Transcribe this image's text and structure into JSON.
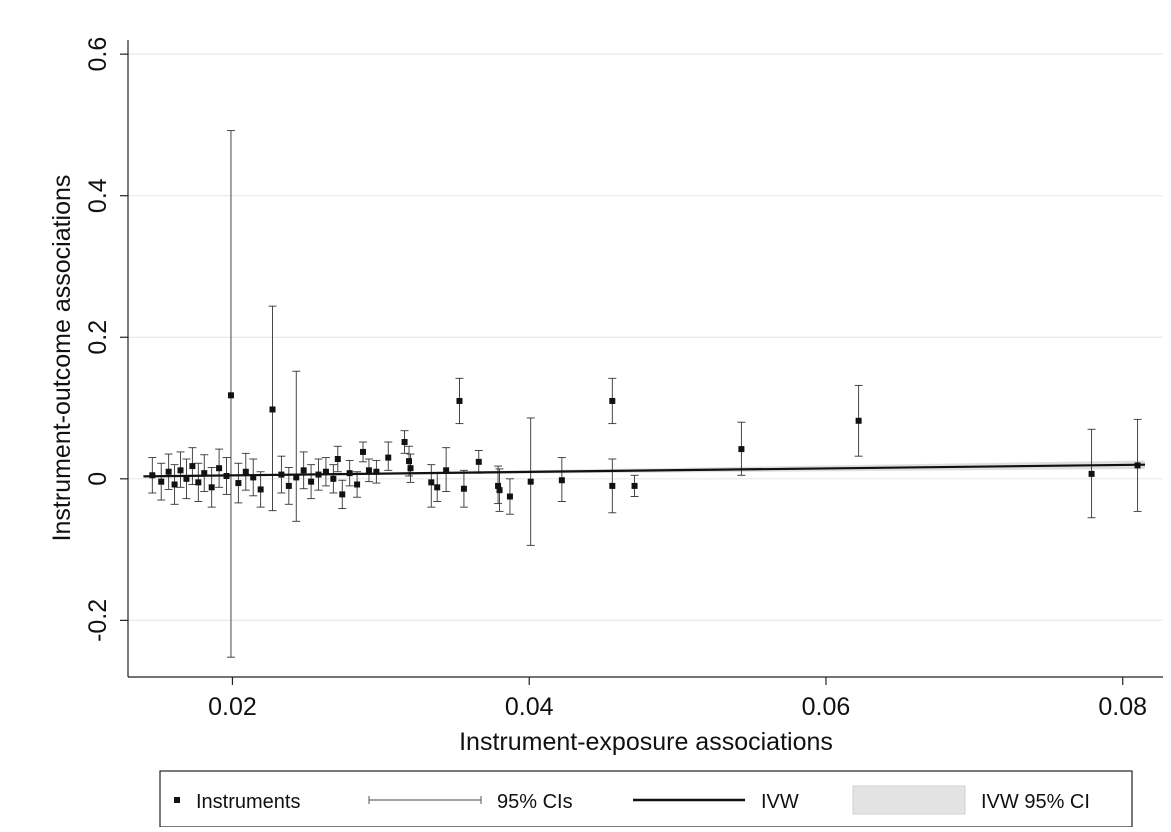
{
  "chart_data": {
    "type": "scatter",
    "title": "",
    "xlabel": "Instrument-exposure associations",
    "ylabel": "Instrument-outcome associations",
    "xlim": [
      0.0135,
      0.0815
    ],
    "ylim": [
      -0.28,
      0.62
    ],
    "x_ticks": [
      {
        "value": 0.02,
        "label": "0.02"
      },
      {
        "value": 0.04,
        "label": "0.04"
      },
      {
        "value": 0.06,
        "label": "0.06"
      },
      {
        "value": 0.08,
        "label": "0.08"
      }
    ],
    "y_ticks": [
      {
        "value": -0.2,
        "label": "-0.2"
      },
      {
        "value": 0,
        "label": "0"
      },
      {
        "value": 0.2,
        "label": "0.2"
      },
      {
        "value": 0.4,
        "label": "0.4"
      },
      {
        "value": 0.6,
        "label": "0.6"
      }
    ],
    "grid": "horizontal",
    "legend_position": "bottom",
    "legend": [
      {
        "key": "instruments",
        "label": "Instruments"
      },
      {
        "key": "ci",
        "label": "95% CIs"
      },
      {
        "key": "ivw",
        "label": "IVW"
      },
      {
        "key": "ivw_ci",
        "label": "IVW 95% CI"
      }
    ],
    "ivw": {
      "slope": 0.245
    },
    "series": [
      {
        "name": "Instruments",
        "points": [
          {
            "x": 0.0199,
            "y": 0.118,
            "lo": -0.252,
            "hi": 0.492
          },
          {
            "x": 0.0227,
            "y": 0.098,
            "lo": -0.045,
            "hi": 0.244
          },
          {
            "x": 0.0243,
            "y": 0.002,
            "lo": -0.06,
            "hi": 0.152
          },
          {
            "x": 0.0146,
            "y": 0.005,
            "lo": -0.02,
            "hi": 0.03
          },
          {
            "x": 0.0152,
            "y": -0.004,
            "lo": -0.03,
            "hi": 0.022
          },
          {
            "x": 0.0157,
            "y": 0.01,
            "lo": -0.015,
            "hi": 0.035
          },
          {
            "x": 0.0161,
            "y": -0.008,
            "lo": -0.036,
            "hi": 0.02
          },
          {
            "x": 0.0165,
            "y": 0.012,
            "lo": -0.012,
            "hi": 0.038
          },
          {
            "x": 0.0169,
            "y": 0.0,
            "lo": -0.028,
            "hi": 0.028
          },
          {
            "x": 0.0173,
            "y": 0.018,
            "lo": -0.008,
            "hi": 0.044
          },
          {
            "x": 0.0177,
            "y": -0.005,
            "lo": -0.032,
            "hi": 0.022
          },
          {
            "x": 0.0181,
            "y": 0.008,
            "lo": -0.018,
            "hi": 0.034
          },
          {
            "x": 0.0186,
            "y": -0.012,
            "lo": -0.04,
            "hi": 0.016
          },
          {
            "x": 0.0191,
            "y": 0.015,
            "lo": -0.012,
            "hi": 0.042
          },
          {
            "x": 0.0196,
            "y": 0.004,
            "lo": -0.022,
            "hi": 0.03
          },
          {
            "x": 0.0204,
            "y": -0.006,
            "lo": -0.034,
            "hi": 0.022
          },
          {
            "x": 0.0209,
            "y": 0.01,
            "lo": -0.016,
            "hi": 0.036
          },
          {
            "x": 0.0214,
            "y": 0.002,
            "lo": -0.024,
            "hi": 0.028
          },
          {
            "x": 0.0219,
            "y": -0.015,
            "lo": -0.04,
            "hi": 0.01
          },
          {
            "x": 0.0233,
            "y": 0.006,
            "lo": -0.02,
            "hi": 0.032
          },
          {
            "x": 0.0238,
            "y": -0.01,
            "lo": -0.036,
            "hi": 0.016
          },
          {
            "x": 0.0248,
            "y": 0.012,
            "lo": -0.014,
            "hi": 0.038
          },
          {
            "x": 0.0253,
            "y": -0.004,
            "lo": -0.028,
            "hi": 0.02
          },
          {
            "x": 0.0258,
            "y": 0.006,
            "lo": -0.016,
            "hi": 0.028
          },
          {
            "x": 0.0263,
            "y": 0.01,
            "lo": -0.01,
            "hi": 0.03
          },
          {
            "x": 0.0268,
            "y": 0.0,
            "lo": -0.02,
            "hi": 0.02
          },
          {
            "x": 0.0271,
            "y": 0.028,
            "lo": 0.01,
            "hi": 0.046
          },
          {
            "x": 0.0274,
            "y": -0.022,
            "lo": -0.042,
            "hi": -0.002
          },
          {
            "x": 0.0279,
            "y": 0.008,
            "lo": -0.01,
            "hi": 0.026
          },
          {
            "x": 0.0284,
            "y": -0.008,
            "lo": -0.026,
            "hi": 0.01
          },
          {
            "x": 0.0288,
            "y": 0.038,
            "lo": 0.024,
            "hi": 0.052
          },
          {
            "x": 0.0292,
            "y": 0.012,
            "lo": -0.004,
            "hi": 0.028
          },
          {
            "x": 0.0297,
            "y": 0.01,
            "lo": -0.006,
            "hi": 0.026
          },
          {
            "x": 0.0305,
            "y": 0.03,
            "lo": 0.012,
            "hi": 0.052
          },
          {
            "x": 0.0316,
            "y": 0.052,
            "lo": 0.036,
            "hi": 0.068
          },
          {
            "x": 0.0319,
            "y": 0.025,
            "lo": 0.004,
            "hi": 0.046
          },
          {
            "x": 0.032,
            "y": 0.015,
            "lo": -0.005,
            "hi": 0.035
          },
          {
            "x": 0.0334,
            "y": -0.005,
            "lo": -0.04,
            "hi": 0.02
          },
          {
            "x": 0.0338,
            "y": -0.012,
            "lo": -0.032,
            "hi": 0.008
          },
          {
            "x": 0.0344,
            "y": 0.012,
            "lo": -0.018,
            "hi": 0.044
          },
          {
            "x": 0.0353,
            "y": 0.11,
            "lo": 0.078,
            "hi": 0.142
          },
          {
            "x": 0.0356,
            "y": -0.014,
            "lo": -0.04,
            "hi": 0.012
          },
          {
            "x": 0.0366,
            "y": 0.024,
            "lo": 0.008,
            "hi": 0.04
          },
          {
            "x": 0.0379,
            "y": -0.01,
            "lo": -0.035,
            "hi": 0.018
          },
          {
            "x": 0.038,
            "y": -0.016,
            "lo": -0.046,
            "hi": 0.014
          },
          {
            "x": 0.0387,
            "y": -0.025,
            "lo": -0.05,
            "hi": 0.0
          },
          {
            "x": 0.0401,
            "y": -0.004,
            "lo": -0.094,
            "hi": 0.086
          },
          {
            "x": 0.0422,
            "y": -0.002,
            "lo": -0.032,
            "hi": 0.03
          },
          {
            "x": 0.0456,
            "y": 0.11,
            "lo": 0.078,
            "hi": 0.142
          },
          {
            "x": 0.0456,
            "y": -0.01,
            "lo": -0.048,
            "hi": 0.028
          },
          {
            "x": 0.0471,
            "y": -0.01,
            "lo": -0.025,
            "hi": 0.005
          },
          {
            "x": 0.0543,
            "y": 0.042,
            "lo": 0.005,
            "hi": 0.08
          },
          {
            "x": 0.0622,
            "y": 0.082,
            "lo": 0.032,
            "hi": 0.132
          },
          {
            "x": 0.0779,
            "y": 0.007,
            "lo": -0.055,
            "hi": 0.07
          },
          {
            "x": 0.081,
            "y": 0.019,
            "lo": -0.046,
            "hi": 0.084
          }
        ]
      }
    ]
  }
}
